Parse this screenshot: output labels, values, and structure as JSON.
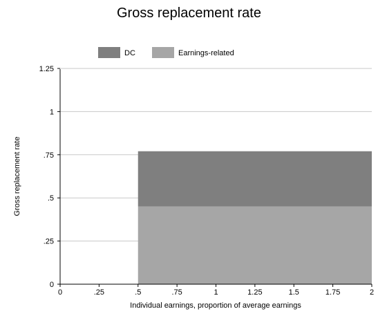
{
  "chart_data": {
    "type": "area",
    "title": "Gross replacement rate",
    "xlabel": "Individual earnings, proportion of average earnings",
    "ylabel": "Gross replacement rate",
    "xlim": [
      0,
      2
    ],
    "ylim": [
      0,
      1.25
    ],
    "xticks": [
      0,
      0.25,
      0.5,
      0.75,
      1,
      1.25,
      1.5,
      1.75,
      2
    ],
    "xtick_labels": [
      "0",
      ".25",
      ".5",
      ".75",
      "1",
      "1.25",
      "1.5",
      "1.75",
      "2"
    ],
    "yticks": [
      0,
      0.25,
      0.5,
      0.75,
      1,
      1.25
    ],
    "ytick_labels": [
      "0",
      ".25",
      ".5",
      ".75",
      "1",
      "1.25"
    ],
    "grid": "horizontal",
    "legend_position": "top",
    "stacked": true,
    "x": [
      0.5,
      2
    ],
    "series": [
      {
        "name": "Earnings-related",
        "color": "#a6a6a6",
        "values": [
          0.45,
          0.45
        ]
      },
      {
        "name": "DC",
        "color": "#7f7f7f",
        "values": [
          0.32,
          0.32
        ]
      }
    ]
  }
}
